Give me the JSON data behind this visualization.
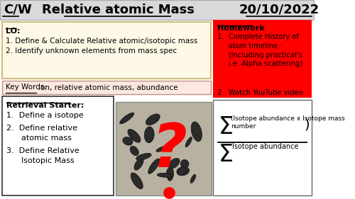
{
  "title_cw": "C/W",
  "title_main": "Relative atomic Mass",
  "title_date": "20/10/2022",
  "bg_color": "#ffffff",
  "header_bg": "#d9d9d9",
  "lo_bg": "#fef9e7",
  "kw_bg": "#fce8e0",
  "retrieval_bg": "#ffffff",
  "hw_bg": "#ff0000",
  "formula_bg": "#ffffff",
  "lo_title": "LO:",
  "lo_lines": [
    "1. Define & Calculate Relative atomic/isotopic mass",
    "2. Identify unknown elements from mass spec"
  ],
  "retrieval_title": "Retrieval Starter:",
  "hw_title": "Homework",
  "formula_numerator_line1": "(Isotope abundance x Isotope mass",
  "formula_numerator_line2": "number",
  "formula_denominator": "Isotope abundance"
}
